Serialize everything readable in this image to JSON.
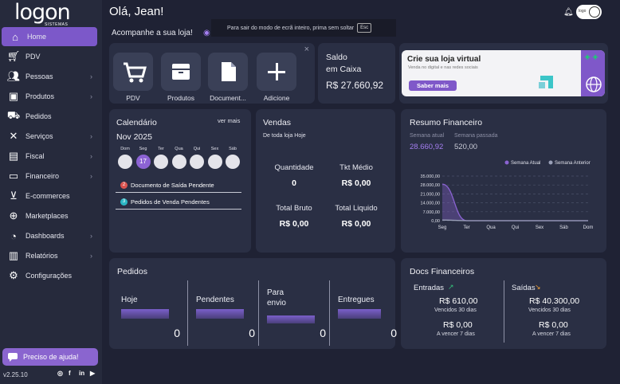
{
  "brand": {
    "logo": "logon",
    "logo_sub": "SISTEMAS"
  },
  "sidebar": {
    "items": [
      {
        "label": "Home",
        "icon": "home-icon",
        "chevron": false
      },
      {
        "label": "PDV",
        "icon": "cart-icon",
        "chevron": false
      },
      {
        "label": "Pessoas",
        "icon": "people-icon",
        "chevron": true
      },
      {
        "label": "Produtos",
        "icon": "box-icon",
        "chevron": true
      },
      {
        "label": "Pedidos",
        "icon": "truck-icon",
        "chevron": false
      },
      {
        "label": "Serviços",
        "icon": "tools-icon",
        "chevron": true
      },
      {
        "label": "Fiscal",
        "icon": "document-icon",
        "chevron": true
      },
      {
        "label": "Financeiro",
        "icon": "money-icon",
        "chevron": true
      },
      {
        "label": "E-commerces",
        "icon": "ecommerce-cart-icon",
        "chevron": false
      },
      {
        "label": "Marketplaces",
        "icon": "globe-icon",
        "chevron": false
      },
      {
        "label": "Dashboards",
        "icon": "pie-chart-icon",
        "chevron": true
      },
      {
        "label": "Relatórios",
        "icon": "clipboard-icon",
        "chevron": true
      },
      {
        "label": "Configurações",
        "icon": "gear-icon",
        "chevron": false
      }
    ],
    "help": "Preciso de ajuda!",
    "version": "v2.25.10"
  },
  "header": {
    "greeting": "Olá, Jean!",
    "user_badge": "logo",
    "follow": "Acompanhe a sua loja!",
    "fullscreen_msg": "Para sair do modo de ecrã inteiro, prima sem soltar",
    "fullscreen_key": "Esc"
  },
  "quick_actions": [
    {
      "label": "PDV"
    },
    {
      "label": "Produtos"
    },
    {
      "label": "Document..."
    },
    {
      "label": "Adicione"
    }
  ],
  "saldo": {
    "title_line1": "Saldo",
    "title_line2": "em Caixa",
    "value": "R$ 27.660,92"
  },
  "promo": {
    "title": "Crie sua loja virtual",
    "subtitle": "Venda no digital e nas redes sociais",
    "button": "Saber mais"
  },
  "calendar": {
    "title": "Calendário",
    "more": "ver mais",
    "month": "Nov 2025",
    "days": [
      "Dom",
      "Seg",
      "Ter",
      "Qua",
      "Qui",
      "Sex",
      "Sáb"
    ],
    "selected_day": "17",
    "items": [
      {
        "count": "2",
        "label": "Documento de Saída Pendente",
        "color": "#d9534f"
      },
      {
        "count": "3",
        "label": "Pedidos de Venda Pendentes",
        "color": "#2bb7c4"
      }
    ]
  },
  "vendas": {
    "title": "Vendas",
    "subtitle": "De toda loja Hoje",
    "cells": [
      {
        "k": "Quantidade",
        "v": "0"
      },
      {
        "k": "Tkt Médio",
        "v": "R$ 0,00"
      },
      {
        "k": "Total Bruto",
        "v": "R$ 0,00"
      },
      {
        "k": "Total Liquido",
        "v": "R$ 0,00"
      }
    ]
  },
  "resumo": {
    "title": "Resumo Financeiro",
    "current_label": "Semana atual",
    "current_value": "28.660,92",
    "past_label": "Semana passada",
    "past_value": "520,00"
  },
  "chart_data": {
    "type": "area",
    "categories": [
      "Seg",
      "Ter",
      "Qua",
      "Qui",
      "Sex",
      "Sáb",
      "Dom"
    ],
    "series": [
      {
        "name": "Semana Atual",
        "values": [
          28660.92,
          0,
          0,
          0,
          0,
          0,
          0
        ],
        "color": "#8a63d2"
      },
      {
        "name": "Semana Anterior",
        "values": [
          520,
          0,
          0,
          0,
          0,
          0,
          0
        ],
        "color": "#9aa0b8"
      }
    ],
    "yticks": [
      "35.000,00",
      "28.000,00",
      "21.000,00",
      "14.000,00",
      "7.000,00",
      "0,00"
    ],
    "ylim": [
      0,
      35000
    ],
    "legend": "top-right",
    "grid": true
  },
  "pedidos": {
    "title": "Pedidos",
    "cols": [
      {
        "k": "Hoje",
        "v": "0"
      },
      {
        "k": "Pendentes",
        "v": "0"
      },
      {
        "k": "Para envio",
        "v": "0"
      },
      {
        "k": "Entregues",
        "v": "0"
      }
    ]
  },
  "docs": {
    "title": "Docs Financeiros",
    "entradas": {
      "label": "Entradas",
      "v1": "R$ 610,00",
      "s1": "Vencidos 30 dias",
      "v2": "R$ 0,00",
      "s2": "A vencer 7 dias"
    },
    "saidas": {
      "label": "Saídas",
      "v1": "R$ 40.300,00",
      "s1": "Vencidos 30 dias",
      "v2": "R$ 0,00",
      "s2": "A vencer 7 dias"
    }
  }
}
